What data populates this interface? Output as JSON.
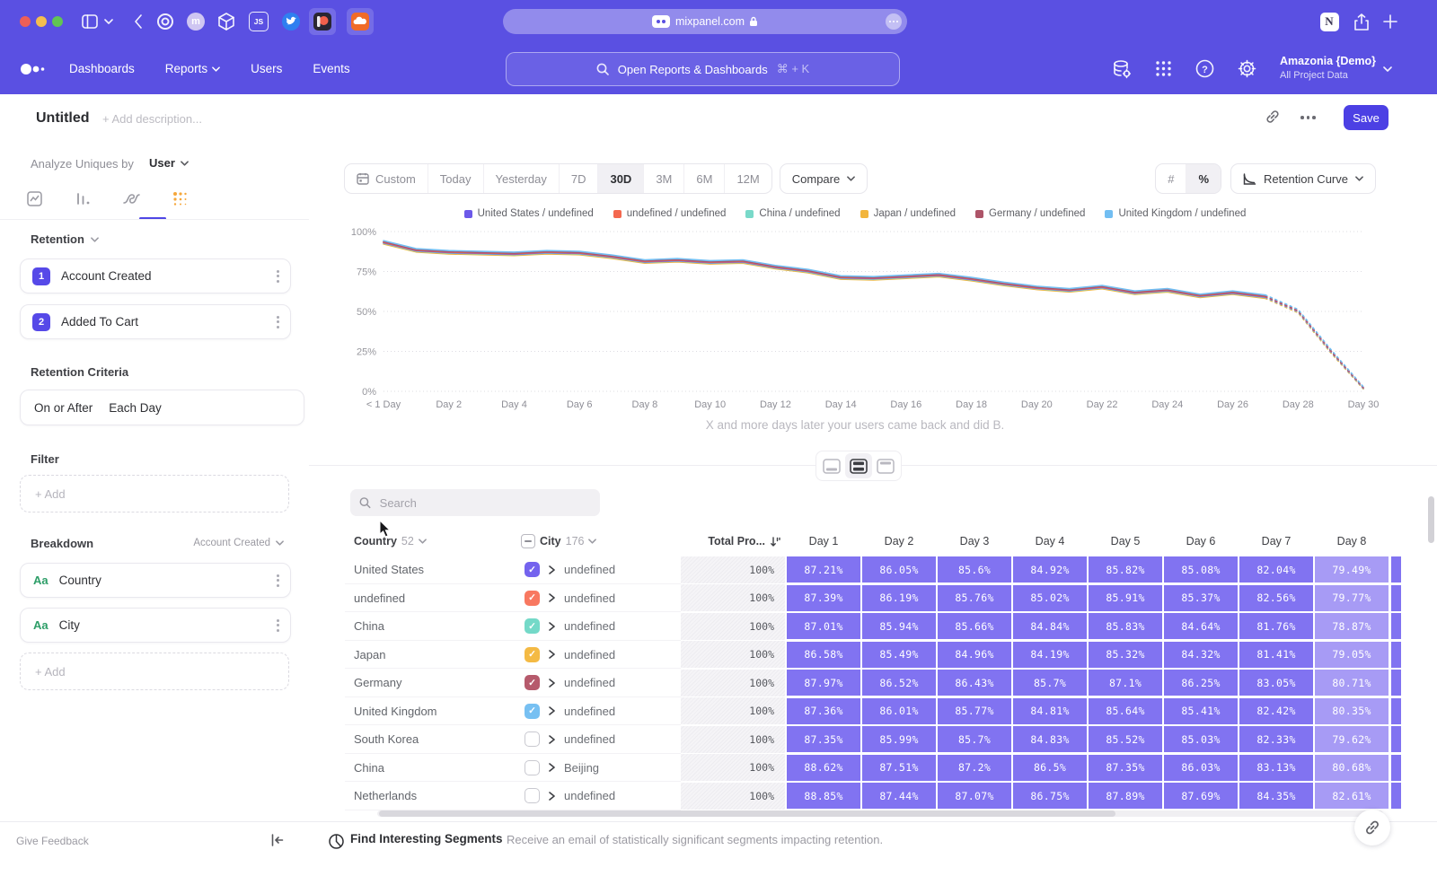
{
  "browser": {
    "url": "mixpanel.com",
    "ext_m": "m",
    "ext_js": "JS",
    "notion": "N"
  },
  "nav": {
    "items": [
      "Dashboards",
      "Reports",
      "Users",
      "Events"
    ],
    "dropdown_items": [
      "Reports"
    ],
    "search_placeholder": "Open Reports & Dashboards",
    "search_shortcut": "⌘ + K",
    "help_glyph": "?",
    "project_name": "Amazonia {Demo}",
    "project_scope": "All Project Data"
  },
  "header": {
    "title": "Untitled",
    "description_placeholder": "+ Add description...",
    "save_label": "Save"
  },
  "sidebar": {
    "analyze_label": "Analyze Uniques by",
    "analyze_value": "User",
    "section_retention": "Retention",
    "steps": [
      {
        "num": "1",
        "label": "Account Created"
      },
      {
        "num": "2",
        "label": "Added To Cart"
      }
    ],
    "criteria_label": "Retention Criteria",
    "criteria_condition": "On or After",
    "criteria_value": "Each Day",
    "filter_label": "Filter",
    "add_label": "+ Add",
    "breakdown_label": "Breakdown",
    "breakdown_event": "Account Created",
    "breakdowns": [
      {
        "type_label": "Aa",
        "label": "Country"
      },
      {
        "type_label": "Aa",
        "label": "City"
      }
    ],
    "give_feedback": "Give Feedback"
  },
  "toolbar": {
    "ranges": [
      "Custom",
      "Today",
      "Yesterday",
      "7D",
      "30D",
      "3M",
      "6M",
      "12M"
    ],
    "active_range": "30D",
    "compare_label": "Compare",
    "value_modes": [
      "#",
      "%"
    ],
    "active_mode": "%",
    "view_label": "Retention Curve"
  },
  "chart_data": {
    "type": "line",
    "caption": "X and more days later your users came back and did B.",
    "ylim": [
      0,
      100
    ],
    "grid": "horizontal-dotted",
    "legend_position": "top-center",
    "y_ticks": [
      {
        "label": "100%",
        "value": 100
      },
      {
        "label": "75%",
        "value": 75
      },
      {
        "label": "50%",
        "value": 50
      },
      {
        "label": "25%",
        "value": 25
      },
      {
        "label": "0%",
        "value": 0
      }
    ],
    "x_ticks": [
      {
        "label": "< 1 Day",
        "day": 0
      },
      {
        "label": "Day 2",
        "day": 2
      },
      {
        "label": "Day 4",
        "day": 4
      },
      {
        "label": "Day 6",
        "day": 6
      },
      {
        "label": "Day 8",
        "day": 8
      },
      {
        "label": "Day 10",
        "day": 10
      },
      {
        "label": "Day 12",
        "day": 12
      },
      {
        "label": "Day 14",
        "day": 14
      },
      {
        "label": "Day 16",
        "day": 16
      },
      {
        "label": "Day 18",
        "day": 18
      },
      {
        "label": "Day 20",
        "day": 20
      },
      {
        "label": "Day 22",
        "day": 22
      },
      {
        "label": "Day 24",
        "day": 24
      },
      {
        "label": "Day 26",
        "day": 26
      },
      {
        "label": "Day 28",
        "day": 28
      },
      {
        "label": "Day 30",
        "day": 30
      }
    ],
    "dashed_from_index": 27,
    "draw_order": [
      3,
      2,
      0,
      1,
      4,
      5
    ],
    "series": [
      {
        "name": "United States / undefined",
        "color": "#6C59E9",
        "values": [
          93,
          88,
          86.8,
          86.3,
          85.8,
          86.8,
          86.3,
          84,
          81,
          81.8,
          80.5,
          81,
          77.5,
          75,
          71,
          70.5,
          71.5,
          72.5,
          70,
          67,
          64.5,
          63,
          65,
          61.5,
          63,
          59.5,
          61.5,
          59,
          50,
          25,
          2
        ]
      },
      {
        "name": "undefined / undefined",
        "color": "#F4684F",
        "values": [
          93.3,
          88.3,
          87.1,
          86.6,
          86.1,
          87.1,
          86.6,
          84.3,
          81.3,
          82.1,
          80.8,
          81.3,
          77.8,
          75.3,
          71.3,
          70.8,
          71.8,
          72.8,
          70.3,
          67.3,
          64.8,
          63.3,
          65.3,
          61.8,
          63.3,
          59.8,
          61.8,
          59.3,
          50.3,
          25.3,
          2.2
        ]
      },
      {
        "name": "China / undefined",
        "color": "#79D9C9",
        "values": [
          92.7,
          87.7,
          86.5,
          86,
          85.5,
          86.5,
          86,
          83.7,
          80.7,
          81.5,
          80.2,
          80.7,
          77.2,
          74.7,
          70.7,
          70.2,
          71.2,
          72.2,
          69.7,
          66.7,
          64.2,
          62.7,
          64.7,
          61.2,
          62.7,
          59.2,
          61.2,
          58.7,
          49.7,
          24.7,
          1.8
        ]
      },
      {
        "name": "Japan / undefined",
        "color": "#F2B53C",
        "values": [
          92.2,
          87.2,
          86,
          85.5,
          85,
          86,
          85.5,
          83.2,
          80.2,
          81,
          79.7,
          80.2,
          76.7,
          74.2,
          70.2,
          69.7,
          70.7,
          71.7,
          69.2,
          66.2,
          63.7,
          62.2,
          64.2,
          60.7,
          62.2,
          58.7,
          60.7,
          58.2,
          49.2,
          24.2,
          1.5
        ]
      },
      {
        "name": "Germany / undefined",
        "color": "#AD5468",
        "values": [
          93.6,
          88.6,
          87.4,
          86.9,
          86.4,
          87.4,
          86.9,
          84.6,
          81.6,
          82.4,
          81.1,
          81.6,
          78.1,
          75.6,
          71.6,
          71.1,
          72.1,
          73.1,
          70.6,
          67.6,
          65.1,
          63.6,
          65.6,
          62.1,
          63.6,
          60.1,
          62.1,
          59.6,
          50.6,
          25.6,
          2.4
        ]
      },
      {
        "name": "United Kingdom / undefined",
        "color": "#72BEF2",
        "values": [
          94.3,
          89.3,
          88.1,
          87.6,
          87.1,
          88.1,
          87.6,
          85.3,
          82.3,
          83.1,
          81.8,
          82.3,
          78.8,
          76.3,
          72.3,
          71.8,
          72.8,
          73.8,
          71.3,
          68.3,
          65.8,
          64.3,
          66.3,
          62.8,
          64.3,
          60.8,
          62.8,
          60.3,
          51.3,
          26.3,
          2.8
        ]
      }
    ]
  },
  "table": {
    "search_placeholder": "Search",
    "country_col": {
      "label": "Country",
      "count": "52"
    },
    "city_col": {
      "label": "City",
      "count": "176"
    },
    "total_col": "Total Pro...",
    "day_headers": [
      "Day 1",
      "Day 2",
      "Day 3",
      "Day 4",
      "Day 5",
      "Day 6",
      "Day 7",
      "Day 8"
    ],
    "rows": [
      {
        "country": "United States",
        "city": "undefined",
        "checked": true,
        "color": "#7463EE",
        "total": "100%",
        "days": [
          "87.21%",
          "86.05%",
          "85.6%",
          "84.92%",
          "85.82%",
          "85.08%",
          "82.04%",
          "79.49%"
        ]
      },
      {
        "country": "undefined",
        "city": "undefined",
        "checked": true,
        "color": "#F87860",
        "total": "100%",
        "days": [
          "87.39%",
          "86.19%",
          "85.76%",
          "85.02%",
          "85.91%",
          "85.37%",
          "82.56%",
          "79.77%"
        ]
      },
      {
        "country": "China",
        "city": "undefined",
        "checked": true,
        "color": "#74D9C8",
        "total": "100%",
        "days": [
          "87.01%",
          "85.94%",
          "85.66%",
          "84.84%",
          "85.83%",
          "84.64%",
          "81.76%",
          "78.87%"
        ]
      },
      {
        "country": "Japan",
        "city": "undefined",
        "checked": true,
        "color": "#F4BA44",
        "total": "100%",
        "days": [
          "86.58%",
          "85.49%",
          "84.96%",
          "84.19%",
          "85.32%",
          "84.32%",
          "81.41%",
          "79.05%"
        ]
      },
      {
        "country": "Germany",
        "city": "undefined",
        "checked": true,
        "color": "#B65A6C",
        "total": "100%",
        "days": [
          "87.97%",
          "86.52%",
          "86.43%",
          "85.7%",
          "87.1%",
          "86.25%",
          "83.05%",
          "80.71%"
        ]
      },
      {
        "country": "United Kingdom",
        "city": "undefined",
        "checked": true,
        "color": "#77C0F2",
        "total": "100%",
        "days": [
          "87.36%",
          "86.01%",
          "85.77%",
          "84.81%",
          "85.64%",
          "85.41%",
          "82.42%",
          "80.35%"
        ]
      },
      {
        "country": "South Korea",
        "city": "undefined",
        "checked": false,
        "color": "",
        "total": "100%",
        "days": [
          "87.35%",
          "85.99%",
          "85.7%",
          "84.83%",
          "85.52%",
          "85.03%",
          "82.33%",
          "79.62%"
        ]
      },
      {
        "country": "China",
        "city": "Beijing",
        "checked": false,
        "color": "",
        "total": "100%",
        "days": [
          "88.62%",
          "87.51%",
          "87.2%",
          "86.5%",
          "87.35%",
          "86.03%",
          "83.13%",
          "80.68%"
        ]
      },
      {
        "country": "Netherlands",
        "city": "undefined",
        "checked": false,
        "color": "",
        "total": "100%",
        "days": [
          "88.85%",
          "87.44%",
          "87.07%",
          "86.75%",
          "87.89%",
          "87.69%",
          "84.35%",
          "82.61%"
        ]
      }
    ]
  },
  "footer": {
    "title": "Find Interesting Segments",
    "description": "Receive an email of statistically significant segments impacting retention."
  },
  "colors": {
    "accent_purple": "#4c40e4",
    "chrome_purple": "#5a50e2",
    "cell_purple": "#8173f1",
    "cell_purple_light": "#a79bf5"
  },
  "icons": {
    "search": "magnifier",
    "gear": "cog",
    "help": "question-circle",
    "apps": "grid-dots",
    "data": "database-gear",
    "link": "chain",
    "more": "kebab-dots",
    "sort": "arrow-down-bars",
    "calendar": "calendar",
    "collapse": "bar-arrow-left",
    "segments": "circle-line",
    "lock": "padlock"
  }
}
